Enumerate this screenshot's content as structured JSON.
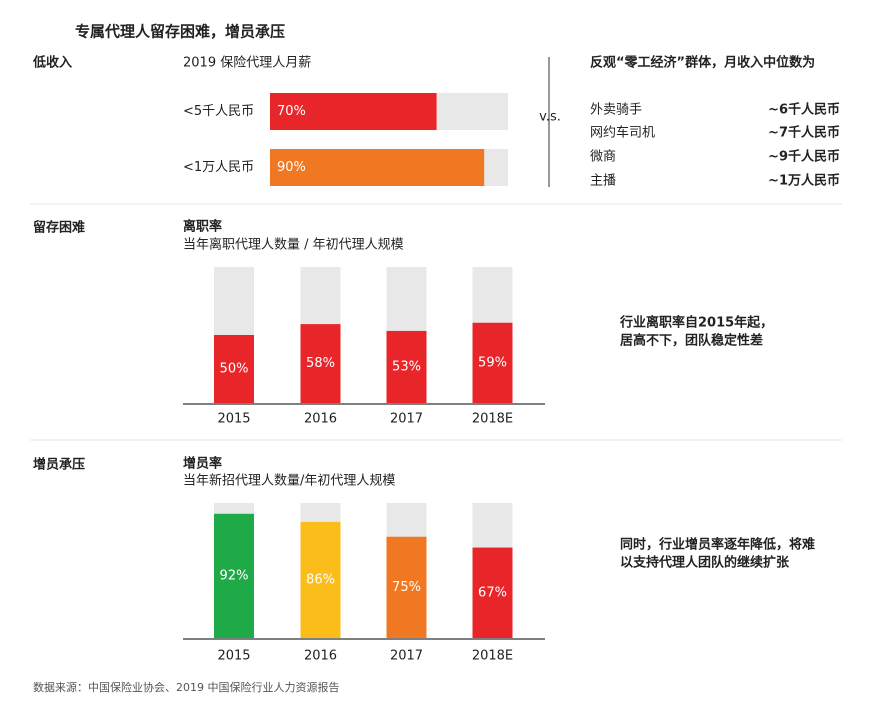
{
  "title": "专属代理人留存困难，增员承压",
  "sections": [
    {
      "label": "低收入"
    },
    {
      "label": "留存困难"
    },
    {
      "label": "增员承压"
    }
  ],
  "comparison": {
    "vs": "v.s.",
    "title": "反观“零工经济”群体，月收入中位数为",
    "rows": [
      {
        "name": "外卖骑手",
        "value": "~6千人民币"
      },
      {
        "name": "网约车司机",
        "value": "~7千人民币"
      },
      {
        "name": "微商",
        "value": "~9千人民币"
      },
      {
        "name": "主播",
        "value": "~1万人民币"
      }
    ]
  },
  "chart_data": [
    {
      "type": "bar",
      "horizontal": true,
      "title": "2019 保险代理人月薪",
      "categories": [
        "<5千人民币",
        "<1万人民币"
      ],
      "values": [
        70,
        90
      ],
      "value_labels": [
        "70%",
        "90%"
      ],
      "colors": [
        "#e8262a",
        "#f07822"
      ],
      "xlim": [
        0,
        100
      ]
    },
    {
      "type": "bar",
      "horizontal": false,
      "title": "离职率",
      "subtitle": "当年离职代理人数量 / 年初代理人规模",
      "categories": [
        "2015",
        "2016",
        "2017",
        "2018E"
      ],
      "values": [
        50,
        58,
        53,
        59
      ],
      "value_labels": [
        "50%",
        "58%",
        "53%",
        "59%"
      ],
      "colors": [
        "#e8262a",
        "#e8262a",
        "#e8262a",
        "#e8262a"
      ],
      "ylim": [
        0,
        100
      ],
      "note": [
        "行业离职率自2015年起，",
        "居高不下，团队稳定性差"
      ]
    },
    {
      "type": "bar",
      "horizontal": false,
      "title": "增员率",
      "subtitle": "当年新招代理人数量/年初代理人规模",
      "categories": [
        "2015",
        "2016",
        "2017",
        "2018E"
      ],
      "values": [
        92,
        86,
        75,
        67
      ],
      "value_labels": [
        "92%",
        "86%",
        "75%",
        "67%"
      ],
      "colors": [
        "#1faa48",
        "#fbbd19",
        "#f07822",
        "#e8262a"
      ],
      "ylim": [
        0,
        100
      ],
      "note": [
        "同时，行业增员率逐年降低，将难",
        "以支持代理人团队的继续扩张"
      ]
    }
  ],
  "source": "数据来源：中国保险业协会、2019 中国保险行业人力资源报告"
}
